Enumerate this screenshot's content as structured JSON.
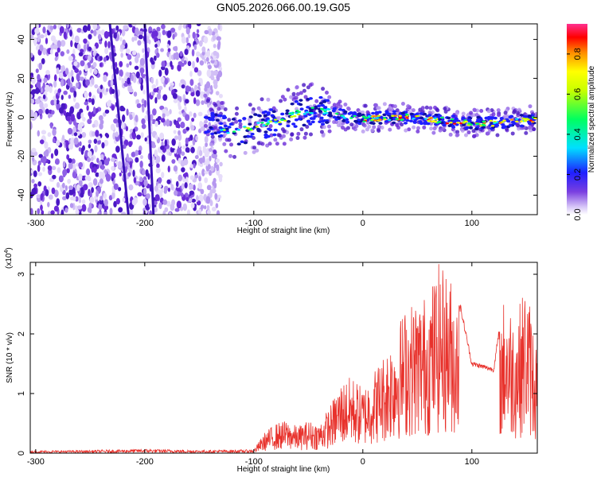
{
  "title": "GN05.2026.066.00.19.G05",
  "colorbar": {
    "label": "Normalized spectral amplitude",
    "ticks": [
      "0.0",
      "0.2",
      "0.4",
      "0.6",
      "0.8"
    ]
  },
  "colors": {
    "snr_line": "#e8322c",
    "scatter_purple": "#6a2bd8",
    "background": "#ffffff"
  },
  "chart_data": [
    {
      "type": "heatmap",
      "title": "GN05.2026.066.00.19.G05",
      "xlabel": "Height of straight line (km)",
      "ylabel": "Frequency (Hz)",
      "xlim": [
        -305,
        160
      ],
      "ylim": [
        -50,
        48
      ],
      "x_ticks": [
        -300,
        -200,
        -100,
        0,
        100
      ],
      "x_tick_labels": [
        "-300",
        "-200",
        "-100",
        "0",
        "100"
      ],
      "y_ticks": [
        -40,
        -20,
        0,
        20,
        40
      ],
      "y_tick_labels": [
        "-40",
        "-20",
        "0",
        "20",
        "40"
      ],
      "colorscale": {
        "min": 0.0,
        "max": 0.95,
        "label": "Normalized spectral amplitude"
      },
      "features": [
        {
          "name": "dominant-frequency-ridge",
          "x": [
            -145,
            -120,
            -100,
            -80,
            -60,
            -40,
            -20,
            0,
            20,
            40,
            60,
            80,
            100,
            120,
            140,
            160
          ],
          "y": [
            -2,
            -8,
            -5,
            -2,
            2,
            4,
            1,
            -1,
            0,
            0,
            -1,
            -2,
            -3,
            -3,
            -2,
            -1
          ]
        },
        {
          "name": "oblique-noise-streak-1",
          "x": [
            -232,
            -215
          ],
          "y": [
            48,
            -50
          ]
        },
        {
          "name": "oblique-noise-streak-2",
          "x": [
            -200,
            -192
          ],
          "y": [
            48,
            -50
          ]
        },
        {
          "name": "noise-region",
          "x_range": [
            -305,
            -130
          ],
          "y_range": [
            -50,
            48
          ]
        }
      ]
    },
    {
      "type": "line",
      "xlabel": "Height of straight line (km)",
      "ylabel": "SNR (10 * v/v)",
      "y_multiplier": "(x10",
      "y_exponent": "4",
      "xlim": [
        -305,
        160
      ],
      "ylim": [
        0,
        3.2
      ],
      "x_ticks": [
        -300,
        -200,
        -100,
        0,
        100
      ],
      "x_tick_labels": [
        "-300",
        "-200",
        "-100",
        "0",
        "100"
      ],
      "y_ticks": [
        0,
        1,
        2,
        3
      ],
      "y_tick_labels": [
        "0",
        "1",
        "2",
        "3"
      ],
      "series": [
        {
          "name": "SNR envelope (approx.)",
          "x": [
            -305,
            -250,
            -200,
            -150,
            -100,
            -90,
            -80,
            -70,
            -60,
            -50,
            -40,
            -30,
            -20,
            -10,
            0,
            10,
            20,
            30,
            40,
            50,
            60,
            70,
            80,
            90,
            100,
            110,
            120,
            130,
            140,
            150,
            160
          ],
          "y": [
            0.04,
            0.05,
            0.07,
            0.05,
            0.06,
            0.35,
            0.5,
            0.55,
            0.45,
            0.55,
            0.5,
            0.8,
            1.2,
            1.3,
            1.1,
            1.4,
            1.7,
            2.1,
            2.5,
            2.6,
            2.7,
            3.2,
            3.0,
            2.4,
            1.5,
            1.45,
            1.4,
            2.7,
            2.3,
            2.9,
            1.8
          ]
        }
      ]
    }
  ]
}
